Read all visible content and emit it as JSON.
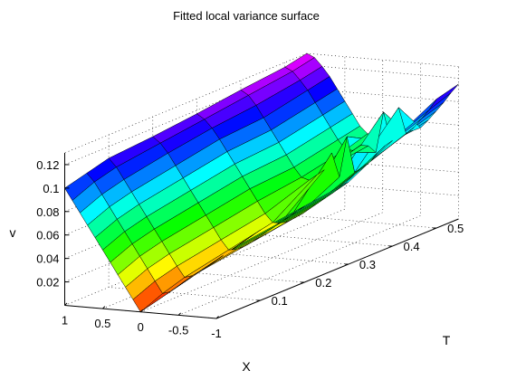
{
  "chart_data": {
    "type": "surface",
    "title": "Fitted local variance surface",
    "xlabel": "X",
    "ylabel": "T",
    "zlabel": "v",
    "xlim": [
      -1,
      1
    ],
    "ylim": [
      0,
      0.55
    ],
    "zlim": [
      0,
      0.13
    ],
    "x_ticks": [
      "1",
      "0.5",
      "0",
      "-0.5",
      "-1"
    ],
    "y_ticks": [
      "0.1",
      "0.2",
      "0.3",
      "0.4",
      "0.5"
    ],
    "z_ticks": [
      "0.02",
      "0.04",
      "0.06",
      "0.08",
      "0.1",
      "0.12"
    ],
    "x": [
      -1,
      -0.9,
      -0.8,
      -0.7,
      -0.6,
      -0.5,
      -0.4,
      -0.3,
      -0.2,
      -0.1,
      0,
      0.1,
      0.2,
      0.3,
      0.4,
      0.5,
      0.6,
      0.7,
      0.8,
      0.9,
      1
    ],
    "t": [
      0,
      0.05,
      0.1,
      0.2,
      0.3,
      0.4,
      0.5,
      0.55
    ],
    "v": [
      [
        0.05,
        0.045,
        0.04,
        0.035,
        0.03,
        0.025,
        0.02,
        0.015,
        0.01,
        0.005,
        0.0,
        0.01,
        0.02,
        0.03,
        0.04,
        0.05,
        0.06,
        0.07,
        0.08,
        0.09,
        0.1
      ],
      [
        0.055,
        0.05,
        0.045,
        0.04,
        0.035,
        0.03,
        0.025,
        0.02,
        0.015,
        0.01,
        0.008,
        0.018,
        0.028,
        0.038,
        0.048,
        0.058,
        0.068,
        0.078,
        0.088,
        0.098,
        0.105
      ],
      [
        0.06,
        0.055,
        0.05,
        0.045,
        0.04,
        0.035,
        0.03,
        0.025,
        0.02,
        0.016,
        0.014,
        0.023,
        0.033,
        0.043,
        0.053,
        0.063,
        0.073,
        0.083,
        0.093,
        0.103,
        0.11
      ],
      [
        0.065,
        0.06,
        0.055,
        0.05,
        0.045,
        0.04,
        0.035,
        0.03,
        0.026,
        0.023,
        0.022,
        0.03,
        0.04,
        0.05,
        0.06,
        0.07,
        0.08,
        0.09,
        0.1,
        0.108,
        0.113
      ],
      [
        0.07,
        0.065,
        0.06,
        0.055,
        0.05,
        0.045,
        0.04,
        0.036,
        0.032,
        0.03,
        0.03,
        0.037,
        0.047,
        0.057,
        0.067,
        0.077,
        0.087,
        0.097,
        0.106,
        0.113,
        0.117
      ],
      [
        0.09,
        0.085,
        0.078,
        0.07,
        0.065,
        0.06,
        0.09,
        0.055,
        0.075,
        0.06,
        0.055,
        0.05,
        0.052,
        0.06,
        0.07,
        0.08,
        0.09,
        0.1,
        0.11,
        0.118,
        0.122
      ],
      [
        0.11,
        0.1,
        0.092,
        0.084,
        0.078,
        0.1,
        0.07,
        0.095,
        0.06,
        0.065,
        0.065,
        0.06,
        0.06,
        0.068,
        0.078,
        0.088,
        0.098,
        0.108,
        0.116,
        0.123,
        0.126
      ],
      [
        0.115,
        0.107,
        0.098,
        0.09,
        0.082,
        0.075,
        0.072,
        0.07,
        0.068,
        0.068,
        0.068,
        0.066,
        0.066,
        0.072,
        0.082,
        0.092,
        0.102,
        0.112,
        0.12,
        0.127,
        0.13
      ]
    ],
    "colormap": "hsv",
    "grid": true,
    "box": true
  }
}
